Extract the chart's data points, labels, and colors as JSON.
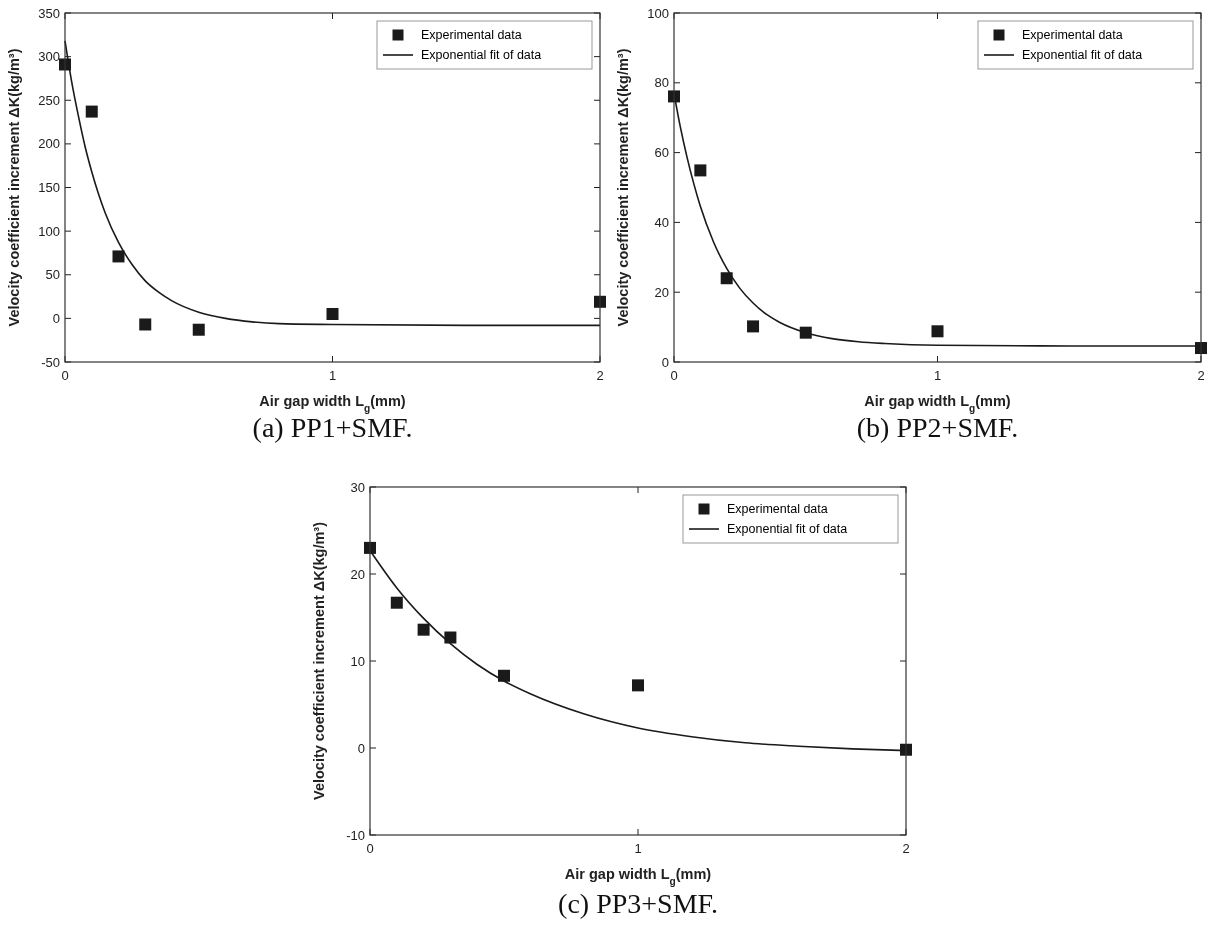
{
  "chart_data": [
    {
      "type": "scatter",
      "title": "(a) PP1+SMF.",
      "xlabel": "Air gap width L$_{g}$(mm)",
      "ylabel": "Velocity coefficient increment ΔK(kg/m³)",
      "xlim": [
        0,
        2
      ],
      "xticks": [
        0,
        1,
        2
      ],
      "ylim": [
        -50,
        350
      ],
      "yticks": [
        -50,
        0,
        50,
        100,
        150,
        200,
        250,
        300,
        350
      ],
      "legend": "top right",
      "series": [
        {
          "name": "Experimental data",
          "type": "scatter",
          "marker": "square",
          "color": "#1a1a1a",
          "x": [
            0,
            0.1,
            0.2,
            0.3,
            0.5,
            1,
            2
          ],
          "values": [
            291,
            237,
            71,
            -7,
            -13,
            5,
            19
          ]
        },
        {
          "name": "Exponential fit of data",
          "type": "line",
          "line_style": "solid",
          "color": "#1a1a1a",
          "x": [
            0,
            0.025,
            0.05,
            0.075,
            0.1,
            0.15,
            0.2,
            0.25,
            0.3,
            0.35,
            0.4,
            0.5,
            0.6,
            0.7,
            0.8,
            1,
            1.5,
            2
          ],
          "values": [
            318,
            271,
            232,
            197,
            168,
            121,
            87,
            62,
            43,
            30,
            20,
            7,
            0,
            -4,
            -6,
            -7,
            -8,
            -8
          ]
        }
      ]
    },
    {
      "type": "scatter",
      "title": "(b) PP2+SMF.",
      "xlabel": "Air gap width L$_{g}$(mm)",
      "ylabel": "Velocity coefficient increment ΔK(kg/m³)",
      "xlim": [
        0,
        2
      ],
      "xticks": [
        0,
        1,
        2
      ],
      "ylim": [
        0,
        100
      ],
      "yticks": [
        0,
        20,
        40,
        60,
        80,
        100
      ],
      "legend": "top right",
      "series": [
        {
          "name": "Experimental data",
          "type": "scatter",
          "marker": "square",
          "color": "#1a1a1a",
          "x": [
            0,
            0.1,
            0.2,
            0.3,
            0.5,
            1,
            2
          ],
          "values": [
            76.1,
            54.9,
            24,
            10.2,
            8.4,
            8.8,
            4
          ]
        },
        {
          "name": "Exponential fit of data",
          "type": "line",
          "line_style": "solid",
          "color": "#1a1a1a",
          "x": [
            0,
            0.025,
            0.05,
            0.075,
            0.1,
            0.15,
            0.2,
            0.25,
            0.3,
            0.35,
            0.4,
            0.5,
            0.6,
            0.7,
            0.8,
            1,
            1.5,
            2
          ],
          "values": [
            77,
            67,
            58.5,
            51.1,
            44.6,
            34.4,
            26.8,
            21.1,
            16.9,
            13.7,
            11.4,
            8.4,
            6.7,
            5.8,
            5.3,
            4.8,
            4.6,
            4.6
          ]
        }
      ]
    },
    {
      "type": "scatter",
      "title": "(c) PP3+SMF.",
      "xlabel": "Air gap width L$_{g}$(mm)",
      "ylabel": "Velocity coefficient increment ΔK(kg/m³)",
      "xlim": [
        0,
        2
      ],
      "xticks": [
        0,
        1,
        2
      ],
      "ylim": [
        -10,
        30
      ],
      "yticks": [
        -10,
        0,
        10,
        20,
        30
      ],
      "legend": "top right",
      "series": [
        {
          "name": "Experimental data",
          "type": "scatter",
          "marker": "square",
          "color": "#1a1a1a",
          "x": [
            0,
            0.1,
            0.2,
            0.3,
            0.5,
            1,
            2
          ],
          "values": [
            23,
            16.7,
            13.6,
            12.7,
            8.3,
            7.2,
            -0.2
          ]
        },
        {
          "name": "Exponential fit of data",
          "type": "line",
          "line_style": "solid",
          "color": "#1a1a1a",
          "x": [
            0,
            0.1,
            0.2,
            0.3,
            0.4,
            0.5,
            0.6,
            0.8,
            1,
            1.2,
            1.4,
            1.6,
            1.8,
            2
          ],
          "values": [
            22.7,
            18.4,
            14.9,
            12,
            9.6,
            7.7,
            6.2,
            3.9,
            2.3,
            1.3,
            0.6,
            0.2,
            -0.1,
            -0.3
          ]
        }
      ]
    }
  ]
}
